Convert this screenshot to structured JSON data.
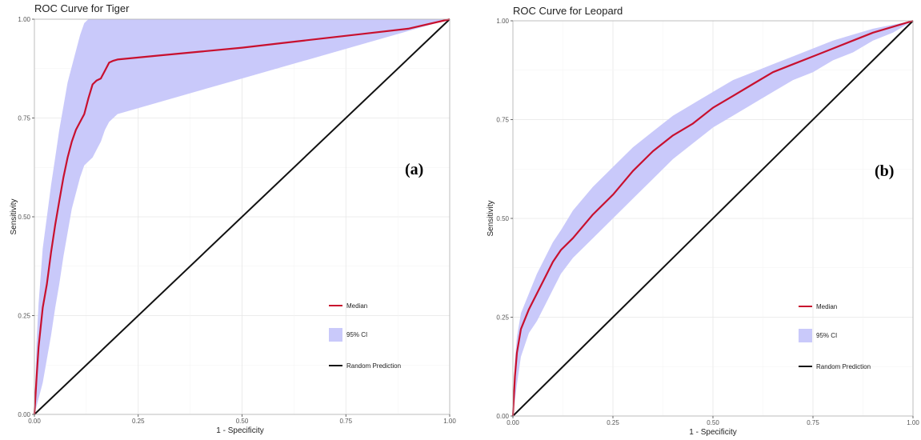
{
  "colors": {
    "median": "#c8102e",
    "ci": "#c9c9fa",
    "random": "#111111",
    "grid_major": "#e6e6e6",
    "grid_minor": "#f3f3f3",
    "frame": "#b3b3b3"
  },
  "chart_data": [
    {
      "type": "line",
      "title": "ROC Curve for Tiger",
      "tag": "(a)",
      "xlabel": "1 - Specificity",
      "ylabel": "Sensitivity",
      "xlim": [
        0,
        1
      ],
      "ylim": [
        0,
        1
      ],
      "x_ticks": [
        "0.00",
        "0.25",
        "0.50",
        "0.75",
        "1.00"
      ],
      "y_ticks": [
        "0.00",
        "0.25",
        "0.50",
        "0.75",
        "1.00"
      ],
      "grid": true,
      "legend_position": "bottom-right",
      "legend": {
        "median": "Median",
        "ci": "95% CI",
        "random": "Random Prediction"
      },
      "median": {
        "x": [
          0,
          0.005,
          0.01,
          0.02,
          0.03,
          0.04,
          0.05,
          0.06,
          0.07,
          0.08,
          0.09,
          0.1,
          0.11,
          0.12,
          0.13,
          0.14,
          0.15,
          0.16,
          0.17,
          0.18,
          0.19,
          0.2,
          0.3,
          0.4,
          0.5,
          0.6,
          0.7,
          0.8,
          0.9,
          1
        ],
        "y": [
          0,
          0.09,
          0.17,
          0.27,
          0.33,
          0.41,
          0.48,
          0.54,
          0.6,
          0.65,
          0.69,
          0.72,
          0.74,
          0.76,
          0.8,
          0.835,
          0.845,
          0.85,
          0.87,
          0.89,
          0.895,
          0.898,
          0.908,
          0.918,
          0.928,
          0.94,
          0.952,
          0.964,
          0.976,
          1
        ]
      },
      "ci_upper": {
        "x": [
          0,
          0.005,
          0.01,
          0.02,
          0.03,
          0.04,
          0.05,
          0.06,
          0.07,
          0.08,
          0.09,
          0.1,
          0.11,
          0.12,
          0.13,
          0.14,
          0.15,
          0.16,
          0.2,
          0.3,
          0.4,
          0.5,
          0.6,
          0.7,
          0.8,
          0.9,
          1
        ],
        "y": [
          0,
          0.18,
          0.28,
          0.42,
          0.5,
          0.58,
          0.65,
          0.72,
          0.78,
          0.84,
          0.88,
          0.92,
          0.96,
          0.99,
          1,
          1,
          1,
          1,
          1,
          1,
          1,
          1,
          1,
          1,
          1,
          1,
          1
        ]
      },
      "ci_lower": {
        "x": [
          0,
          0.01,
          0.02,
          0.03,
          0.04,
          0.05,
          0.06,
          0.07,
          0.08,
          0.09,
          0.1,
          0.11,
          0.12,
          0.13,
          0.14,
          0.15,
          0.16,
          0.17,
          0.18,
          0.19,
          0.2,
          0.3,
          0.4,
          0.5,
          0.6,
          0.7,
          0.8,
          0.9,
          1
        ],
        "y": [
          0,
          0.04,
          0.08,
          0.14,
          0.2,
          0.27,
          0.33,
          0.4,
          0.46,
          0.52,
          0.56,
          0.6,
          0.63,
          0.64,
          0.65,
          0.67,
          0.69,
          0.72,
          0.74,
          0.75,
          0.76,
          0.79,
          0.82,
          0.85,
          0.88,
          0.91,
          0.94,
          0.97,
          1
        ]
      },
      "random": {
        "x": [
          0,
          1
        ],
        "y": [
          0,
          1
        ]
      }
    },
    {
      "type": "line",
      "title": "ROC Curve for Leopard",
      "tag": "(b)",
      "xlabel": "1 - Specificity",
      "ylabel": "Sensitivity",
      "xlim": [
        0,
        1
      ],
      "ylim": [
        0,
        1
      ],
      "x_ticks": [
        "0.00",
        "0.25",
        "0.50",
        "0.75",
        "1.00"
      ],
      "y_ticks": [
        "0.00",
        "0.25",
        "0.50",
        "0.75",
        "1.00"
      ],
      "grid": true,
      "legend_position": "bottom-right",
      "legend": {
        "median": "Median",
        "ci": "95% CI",
        "random": "Random Prediction"
      },
      "median": {
        "x": [
          0,
          0.005,
          0.01,
          0.02,
          0.04,
          0.06,
          0.08,
          0.1,
          0.12,
          0.15,
          0.2,
          0.25,
          0.3,
          0.35,
          0.4,
          0.45,
          0.5,
          0.55,
          0.6,
          0.65,
          0.7,
          0.75,
          0.8,
          0.85,
          0.9,
          0.95,
          1
        ],
        "y": [
          0,
          0.1,
          0.16,
          0.22,
          0.27,
          0.31,
          0.35,
          0.39,
          0.42,
          0.45,
          0.51,
          0.56,
          0.62,
          0.67,
          0.71,
          0.74,
          0.78,
          0.81,
          0.84,
          0.87,
          0.89,
          0.91,
          0.93,
          0.95,
          0.97,
          0.985,
          1
        ]
      },
      "ci_upper": {
        "x": [
          0,
          0.005,
          0.01,
          0.02,
          0.04,
          0.06,
          0.08,
          0.1,
          0.12,
          0.15,
          0.2,
          0.25,
          0.3,
          0.35,
          0.4,
          0.45,
          0.5,
          0.55,
          0.6,
          0.65,
          0.7,
          0.75,
          0.8,
          0.85,
          0.9,
          0.95,
          1
        ],
        "y": [
          0,
          0.14,
          0.2,
          0.26,
          0.31,
          0.36,
          0.4,
          0.44,
          0.47,
          0.52,
          0.58,
          0.63,
          0.68,
          0.72,
          0.76,
          0.79,
          0.82,
          0.85,
          0.87,
          0.89,
          0.91,
          0.93,
          0.95,
          0.965,
          0.98,
          0.99,
          1
        ]
      },
      "ci_lower": {
        "x": [
          0,
          0.01,
          0.02,
          0.04,
          0.06,
          0.08,
          0.1,
          0.12,
          0.15,
          0.2,
          0.25,
          0.3,
          0.35,
          0.4,
          0.45,
          0.5,
          0.55,
          0.6,
          0.65,
          0.7,
          0.75,
          0.8,
          0.85,
          0.9,
          0.95,
          1
        ],
        "y": [
          0,
          0.08,
          0.15,
          0.21,
          0.24,
          0.28,
          0.32,
          0.36,
          0.4,
          0.45,
          0.5,
          0.55,
          0.6,
          0.65,
          0.69,
          0.73,
          0.76,
          0.79,
          0.82,
          0.85,
          0.87,
          0.9,
          0.92,
          0.95,
          0.97,
          1
        ]
      },
      "random": {
        "x": [
          0,
          1
        ],
        "y": [
          0,
          1
        ]
      }
    }
  ]
}
